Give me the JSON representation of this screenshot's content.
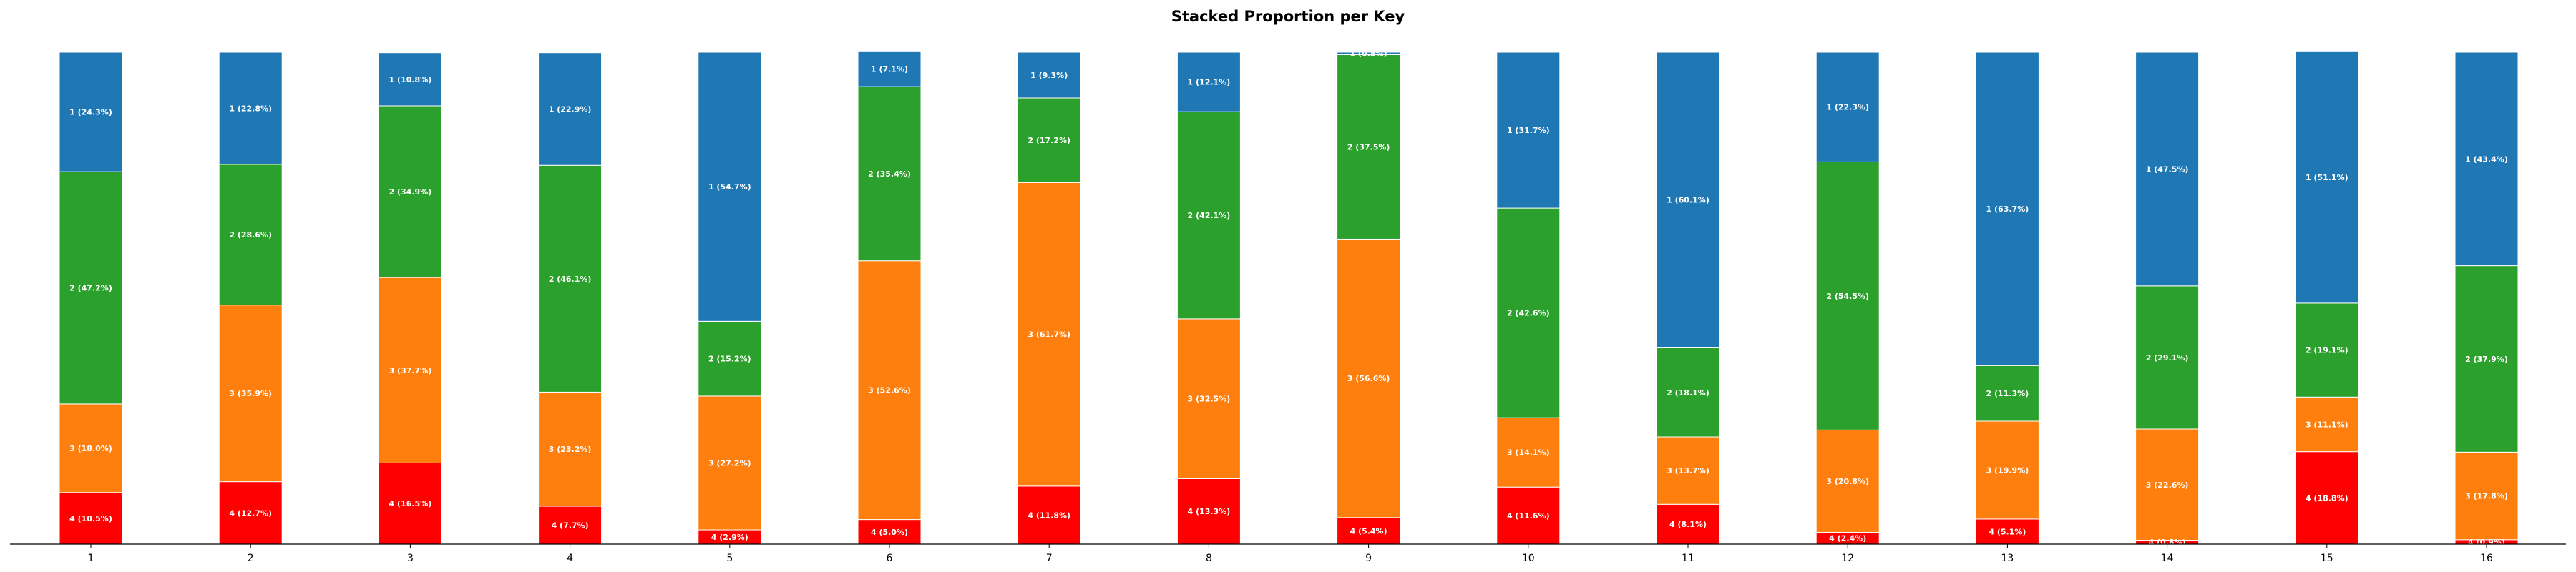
{
  "chart_data": {
    "type": "bar",
    "stacked": true,
    "title": "Stacked Proportion per Key",
    "xlabel": "",
    "ylabel": "",
    "ylim": [
      0,
      100
    ],
    "grid": false,
    "categories": [
      "1",
      "2",
      "3",
      "4",
      "5",
      "6",
      "7",
      "8",
      "9",
      "10",
      "11",
      "12",
      "13",
      "14",
      "15",
      "16"
    ],
    "stack_order_bottom_to_top": [
      "4",
      "3",
      "2",
      "1"
    ],
    "series": [
      {
        "name": "4",
        "color": "#ff0000",
        "values": [
          10.5,
          12.7,
          16.5,
          7.7,
          2.9,
          5.0,
          11.8,
          13.3,
          5.4,
          11.6,
          8.1,
          2.4,
          5.1,
          0.8,
          18.8,
          0.9
        ],
        "labels": [
          "4 (10.5%)",
          "4 (12.7%)",
          "4 (16.5%)",
          "4 (7.7%)",
          "4 (2.9%)",
          "4 (5.0%)",
          "4 (11.8%)",
          "4 (13.3%)",
          "4 (5.4%)",
          "4 (11.6%)",
          "4 (8.1%)",
          "4 (2.4%)",
          "4 (5.1%)",
          "4 (0.8%)",
          "4 (18.8%)",
          "4 (0.9%)"
        ]
      },
      {
        "name": "3",
        "color": "#ff7f0e",
        "values": [
          18.0,
          35.9,
          37.7,
          23.2,
          27.2,
          52.6,
          61.7,
          32.5,
          56.6,
          14.1,
          13.7,
          20.8,
          19.9,
          22.6,
          11.1,
          17.8
        ],
        "labels": [
          "3 (18.0%)",
          "3 (35.9%)",
          "3 (37.7%)",
          "3 (23.2%)",
          "3 (27.2%)",
          "3 (52.6%)",
          "3 (61.7%)",
          "3 (32.5%)",
          "3 (56.6%)",
          "3 (14.1%)",
          "3 (13.7%)",
          "3 (20.8%)",
          "3 (19.9%)",
          "3 (22.6%)",
          "3 (11.1%)",
          "3 (17.8%)"
        ]
      },
      {
        "name": "2",
        "color": "#2ca02c",
        "values": [
          47.2,
          28.6,
          34.9,
          46.1,
          15.2,
          35.4,
          17.2,
          42.1,
          37.5,
          42.6,
          18.1,
          54.5,
          11.3,
          29.1,
          19.1,
          37.9
        ],
        "labels": [
          "2 (47.2%)",
          "2 (28.6%)",
          "2 (34.9%)",
          "2 (46.1%)",
          "2 (15.2%)",
          "2 (35.4%)",
          "2 (17.2%)",
          "2 (42.1%)",
          "2 (37.5%)",
          "2 (42.6%)",
          "2 (18.1%)",
          "2 (54.5%)",
          "2 (11.3%)",
          "2 (29.1%)",
          "2 (19.1%)",
          "2 (37.9%)"
        ]
      },
      {
        "name": "1",
        "color": "#1f77b4",
        "values": [
          24.3,
          22.8,
          10.8,
          22.9,
          54.7,
          7.1,
          9.3,
          12.1,
          0.5,
          31.7,
          60.1,
          22.3,
          63.7,
          47.5,
          51.1,
          43.4
        ],
        "labels": [
          "1 (24.3%)",
          "1 (22.8%)",
          "1 (10.8%)",
          "1 (22.9%)",
          "1 (54.7%)",
          "1 (7.1%)",
          "1 (9.3%)",
          "1 (12.1%)",
          "1 (0.5%)",
          "1 (31.7%)",
          "1 (60.1%)",
          "1 (22.3%)",
          "1 (63.7%)",
          "1 (47.5%)",
          "1 (51.1%)",
          "1 (43.4%)"
        ]
      }
    ]
  }
}
